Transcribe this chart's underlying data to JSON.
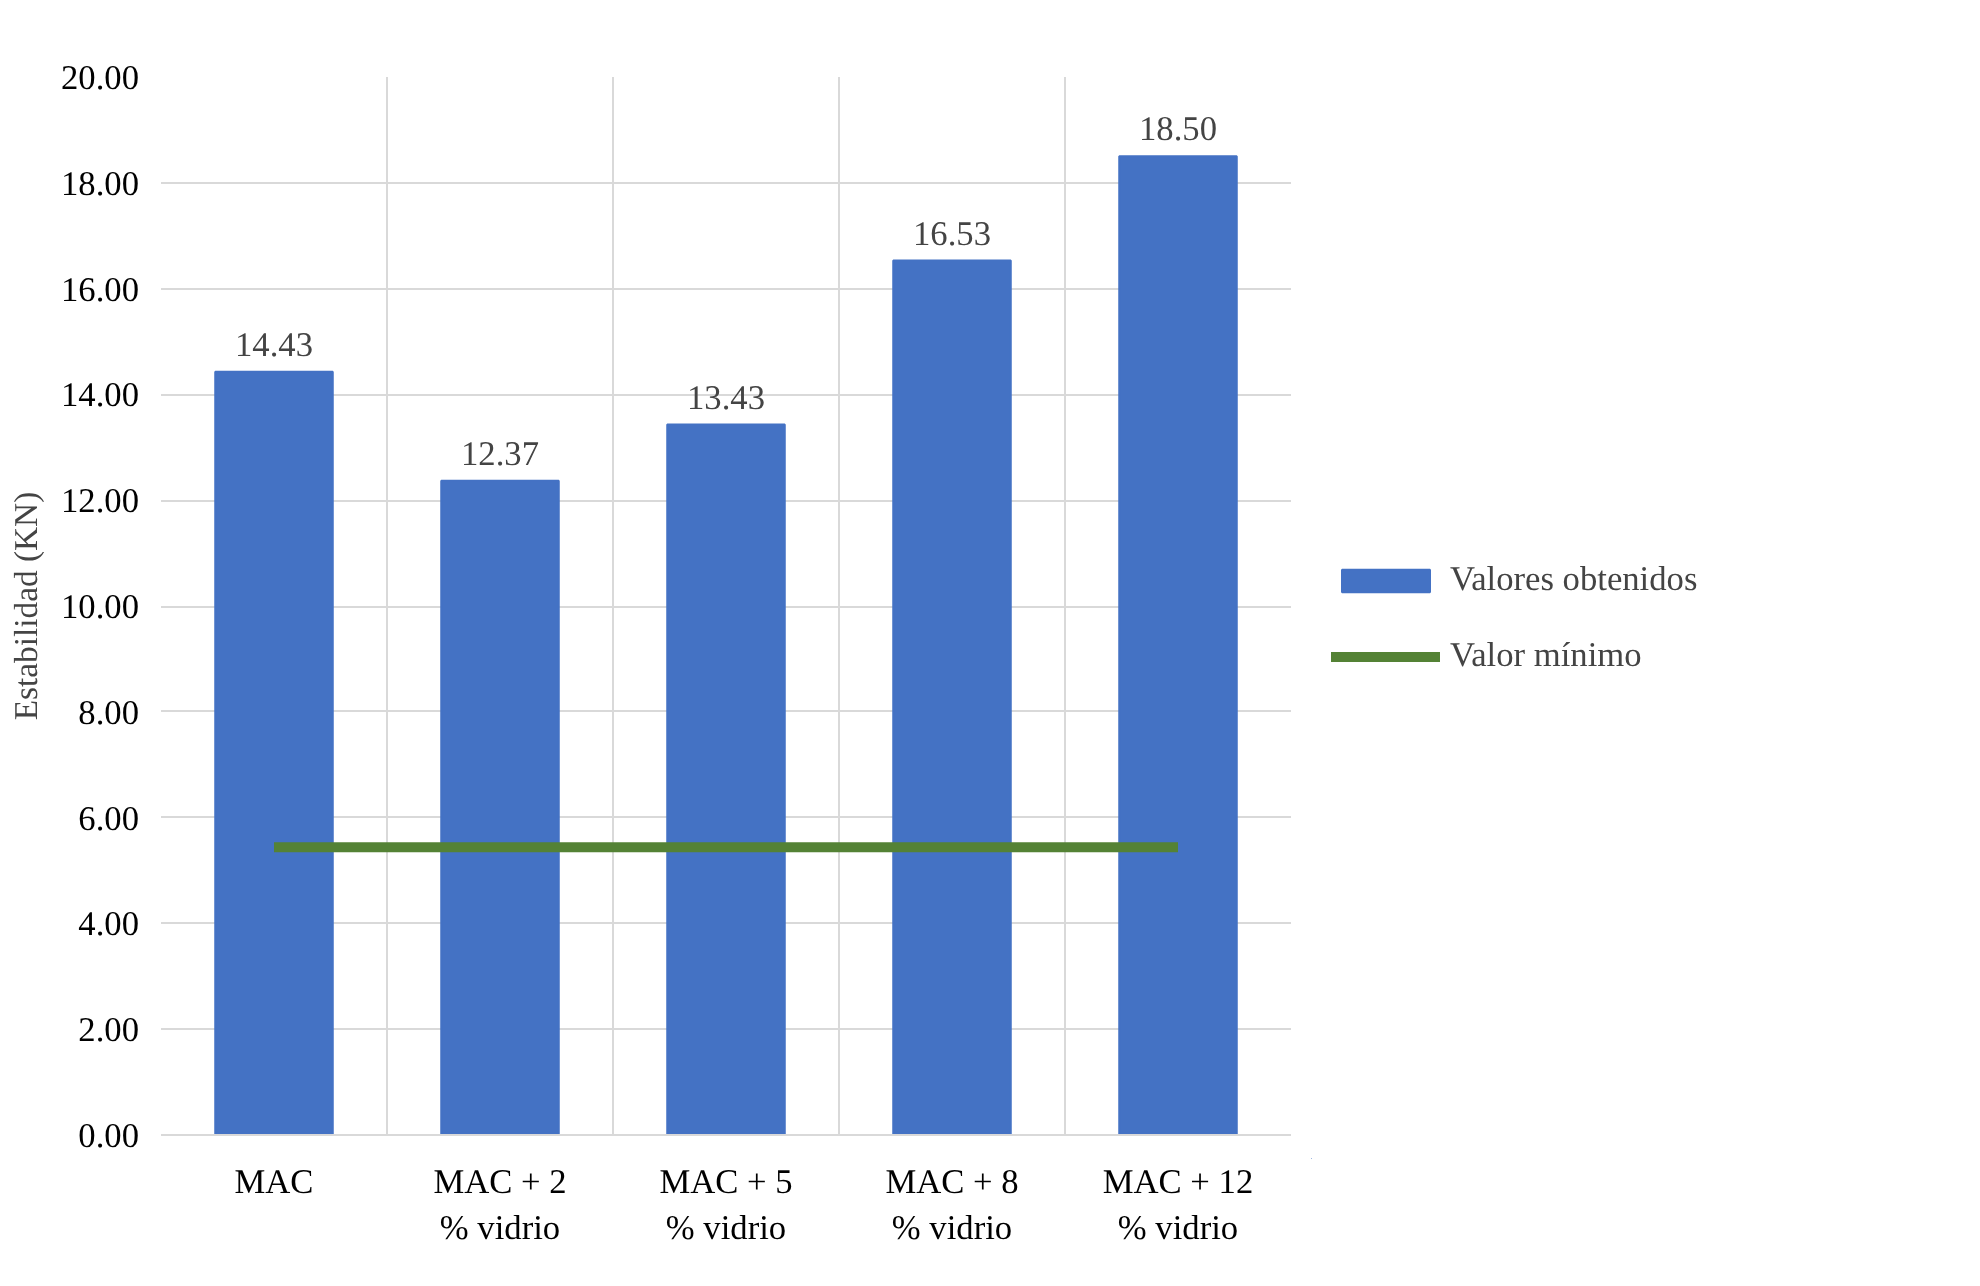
{
  "chart_data": {
    "type": "bar",
    "ylabel": "Estabilidad (KN)",
    "categories": [
      "MAC",
      "MAC + 2\n% vidrio",
      "MAC + 5\n% vidrio",
      "MAC + 8\n% vidrio",
      "MAC + 12\n% vidrio"
    ],
    "series": [
      {
        "name": "Valores obtenidos",
        "color": "#4472c4",
        "values": [
          14.43,
          12.37,
          13.43,
          16.53,
          18.5
        ],
        "data_labels": true,
        "value_labels": [
          "14.43",
          "12.37",
          "13.43",
          "16.53",
          "18.50"
        ]
      },
      {
        "name": "Valor mínimo",
        "type": "line",
        "color": "#548235",
        "values": [
          5.44,
          5.44,
          5.44,
          5.44,
          5.44
        ]
      }
    ],
    "ylim": [
      0,
      20
    ],
    "yticks": [
      {
        "value": 0,
        "label": "0.00"
      },
      {
        "value": 2,
        "label": "2.00"
      },
      {
        "value": 4,
        "label": "4.00"
      },
      {
        "value": 6,
        "label": "6.00"
      },
      {
        "value": 8,
        "label": "8.00"
      },
      {
        "value": 10,
        "label": "10.00"
      },
      {
        "value": 12,
        "label": "12.00"
      },
      {
        "value": 14,
        "label": "14.00"
      },
      {
        "value": 16,
        "label": "16.00"
      },
      {
        "value": 18,
        "label": "18.00"
      },
      {
        "value": 20,
        "label": "20.00"
      }
    ],
    "grid": true,
    "legend": "right"
  }
}
